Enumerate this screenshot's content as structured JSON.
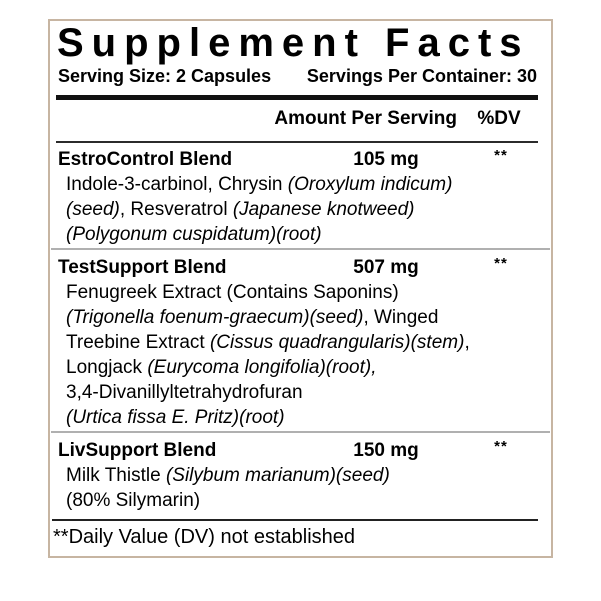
{
  "label": {
    "title": "Supplement Facts",
    "serving_size": "Serving Size: 2 Capsules",
    "servings_per_container": "Servings Per Container: 30",
    "column_headers": {
      "amount": "Amount Per Serving",
      "dv": "%DV"
    },
    "sections": [
      {
        "name": "EstroControl Blend",
        "amount": "105 mg",
        "dv": "**",
        "ingredient_lines": [
          [
            {
              "text": "Indole-3-carbinol, Chrysin ",
              "italic": false
            },
            {
              "text": "(Oroxylum indicum)",
              "italic": true
            }
          ],
          [
            {
              "text": "(seed)",
              "italic": true
            },
            {
              "text": ", Resveratrol ",
              "italic": false
            },
            {
              "text": "(Japanese knotweed)",
              "italic": true
            }
          ],
          [
            {
              "text": "(Polygonum cuspidatum)(root)",
              "italic": true
            }
          ]
        ]
      },
      {
        "name": "TestSupport Blend",
        "amount": "507 mg",
        "dv": "**",
        "ingredient_lines": [
          [
            {
              "text": "Fenugreek Extract (Contains Saponins)",
              "italic": false
            }
          ],
          [
            {
              "text": "(Trigonella foenum-graecum)(seed)",
              "italic": true
            },
            {
              "text": ", Winged",
              "italic": false
            }
          ],
          [
            {
              "text": "Treebine Extract ",
              "italic": false
            },
            {
              "text": "(Cissus quadrangularis)(stem)",
              "italic": true
            },
            {
              "text": ",",
              "italic": false
            }
          ],
          [
            {
              "text": "Longjack ",
              "italic": false
            },
            {
              "text": "(Eurycoma longifolia)(root),",
              "italic": true
            }
          ],
          [
            {
              "text": "3,4-Divanillyltetrahydrofuran",
              "italic": false
            }
          ],
          [
            {
              "text": "(Urtica fissa E. Pritz)(root)",
              "italic": true
            }
          ]
        ]
      },
      {
        "name": "LivSupport Blend",
        "amount": "150 mg",
        "dv": "**",
        "ingredient_lines": [
          [
            {
              "text": "Milk Thistle ",
              "italic": false
            },
            {
              "text": "(Silybum marianum)(seed)",
              "italic": true
            }
          ],
          [
            {
              "text": "(80% Silymarin)",
              "italic": false
            }
          ]
        ]
      }
    ],
    "footnote": "**Daily Value (DV) not established",
    "colors": {
      "border": "#c7b5a2",
      "rule_dark": "#111111",
      "divider_gray": "#b0b0b0",
      "text": "#000000"
    }
  }
}
